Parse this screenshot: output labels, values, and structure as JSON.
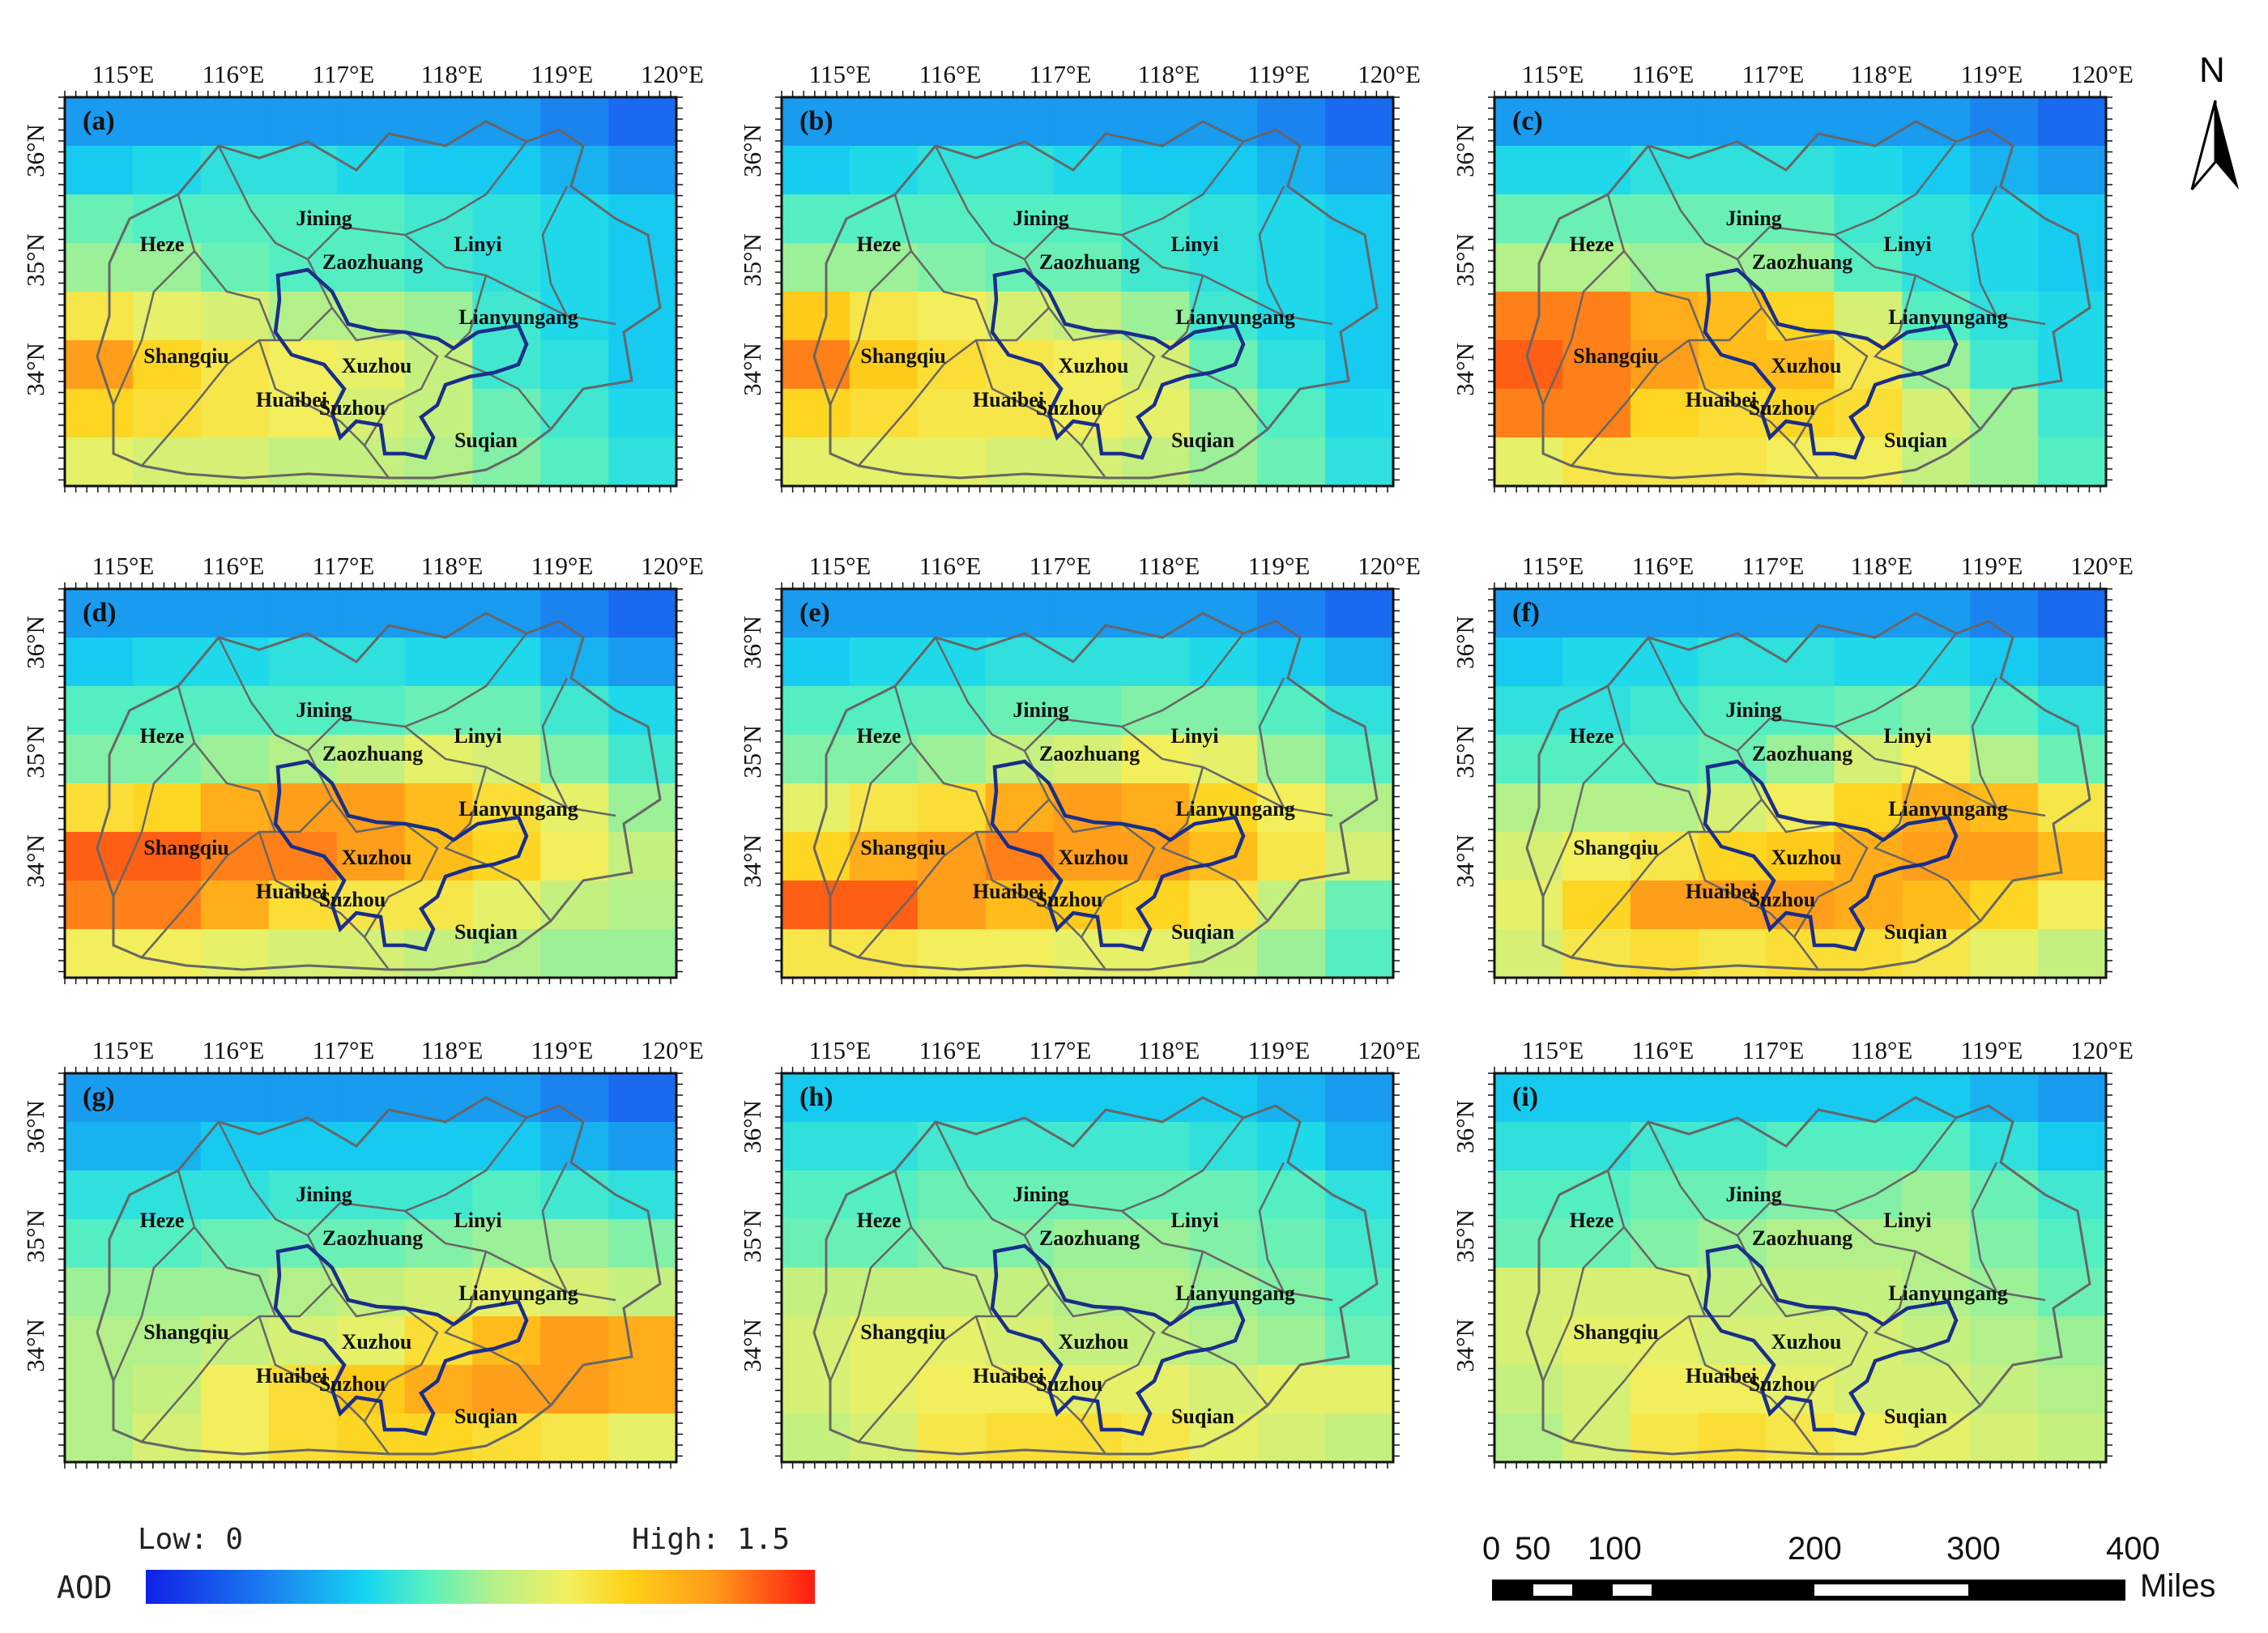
{
  "figure": {
    "lon_ticks": [
      "115°E",
      "116°E",
      "117°E",
      "118°E",
      "119°E",
      "120°E"
    ],
    "lat_ticks": [
      "36°N",
      "35°N",
      "34°N"
    ],
    "cities": [
      {
        "name": "Heze"
      },
      {
        "name": "Jining"
      },
      {
        "name": "Linyi"
      },
      {
        "name": "Zaozhuang"
      },
      {
        "name": "Lianyungang"
      },
      {
        "name": "Shangqiu"
      },
      {
        "name": "Xuzhou"
      },
      {
        "name": "Huaibei"
      },
      {
        "name": "Suzhou"
      },
      {
        "name": "Suqian"
      }
    ],
    "panels": [
      {
        "tag": "(a)"
      },
      {
        "tag": "(b)"
      },
      {
        "tag": "(c)"
      },
      {
        "tag": "(d)"
      },
      {
        "tag": "(e)"
      },
      {
        "tag": "(f)"
      },
      {
        "tag": "(g)"
      },
      {
        "tag": "(h)"
      },
      {
        "tag": "(i)"
      }
    ],
    "aod_grids_note_units": "AOD",
    "aod_grids": [
      [
        [
          0.25,
          0.25,
          0.25,
          0.25,
          0.25,
          0.25,
          0.25,
          0.2,
          0.15
        ],
        [
          0.35,
          0.4,
          0.45,
          0.45,
          0.4,
          0.35,
          0.35,
          0.3,
          0.25
        ],
        [
          0.6,
          0.55,
          0.55,
          0.55,
          0.55,
          0.5,
          0.45,
          0.4,
          0.35
        ],
        [
          0.7,
          0.7,
          0.6,
          0.55,
          0.55,
          0.5,
          0.45,
          0.4,
          0.35
        ],
        [
          1.0,
          0.9,
          0.85,
          0.75,
          0.75,
          0.7,
          0.5,
          0.4,
          0.35
        ],
        [
          1.3,
          1.1,
          1.0,
          0.95,
          0.9,
          0.8,
          0.5,
          0.45,
          0.35
        ],
        [
          1.1,
          1.05,
          1.0,
          0.95,
          0.85,
          0.8,
          0.6,
          0.5,
          0.4
        ],
        [
          0.9,
          0.85,
          0.85,
          0.8,
          0.8,
          0.75,
          0.65,
          0.55,
          0.45
        ]
      ],
      [
        [
          0.25,
          0.25,
          0.25,
          0.25,
          0.25,
          0.25,
          0.25,
          0.2,
          0.15
        ],
        [
          0.35,
          0.4,
          0.45,
          0.45,
          0.4,
          0.35,
          0.35,
          0.3,
          0.25
        ],
        [
          0.55,
          0.55,
          0.55,
          0.55,
          0.55,
          0.5,
          0.45,
          0.4,
          0.35
        ],
        [
          0.7,
          0.7,
          0.65,
          0.6,
          0.6,
          0.5,
          0.45,
          0.4,
          0.35
        ],
        [
          1.15,
          1.0,
          0.95,
          0.85,
          0.8,
          0.7,
          0.5,
          0.4,
          0.35
        ],
        [
          1.35,
          1.15,
          1.05,
          1.0,
          0.95,
          0.85,
          0.6,
          0.45,
          0.35
        ],
        [
          1.1,
          1.05,
          1.0,
          1.0,
          0.95,
          0.9,
          0.7,
          0.55,
          0.4
        ],
        [
          0.9,
          0.9,
          0.9,
          0.85,
          0.85,
          0.8,
          0.7,
          0.6,
          0.45
        ]
      ],
      [
        [
          0.25,
          0.25,
          0.25,
          0.25,
          0.25,
          0.25,
          0.25,
          0.2,
          0.15
        ],
        [
          0.4,
          0.4,
          0.45,
          0.45,
          0.45,
          0.4,
          0.35,
          0.3,
          0.25
        ],
        [
          0.6,
          0.6,
          0.6,
          0.6,
          0.6,
          0.5,
          0.45,
          0.4,
          0.35
        ],
        [
          0.75,
          0.75,
          0.7,
          0.7,
          0.7,
          0.55,
          0.45,
          0.4,
          0.35
        ],
        [
          1.35,
          1.35,
          1.25,
          1.2,
          1.1,
          0.85,
          0.55,
          0.45,
          0.4
        ],
        [
          1.4,
          1.35,
          1.3,
          1.2,
          1.2,
          1.0,
          0.7,
          0.5,
          0.4
        ],
        [
          1.35,
          1.35,
          1.1,
          1.05,
          1.1,
          1.05,
          0.85,
          0.7,
          0.5
        ],
        [
          0.9,
          1.0,
          1.0,
          1.0,
          0.95,
          0.95,
          0.8,
          0.7,
          0.55
        ]
      ],
      [
        [
          0.25,
          0.25,
          0.25,
          0.25,
          0.25,
          0.25,
          0.25,
          0.2,
          0.15
        ],
        [
          0.35,
          0.4,
          0.4,
          0.45,
          0.45,
          0.4,
          0.4,
          0.3,
          0.25
        ],
        [
          0.55,
          0.55,
          0.55,
          0.55,
          0.55,
          0.6,
          0.6,
          0.5,
          0.4
        ],
        [
          0.65,
          0.65,
          0.7,
          0.75,
          0.8,
          0.9,
          0.85,
          0.65,
          0.5
        ],
        [
          1.05,
          1.1,
          1.25,
          1.3,
          1.3,
          1.2,
          1.05,
          0.9,
          0.7
        ],
        [
          1.4,
          1.4,
          1.35,
          1.35,
          1.3,
          1.2,
          1.1,
          0.95,
          0.8
        ],
        [
          1.35,
          1.35,
          1.25,
          1.05,
          1.0,
          1.0,
          0.9,
          0.8,
          0.75
        ],
        [
          0.95,
          0.95,
          0.9,
          0.85,
          0.85,
          0.8,
          0.75,
          0.7,
          0.7
        ]
      ],
      [
        [
          0.25,
          0.25,
          0.25,
          0.25,
          0.25,
          0.25,
          0.25,
          0.2,
          0.15
        ],
        [
          0.35,
          0.4,
          0.4,
          0.45,
          0.45,
          0.45,
          0.4,
          0.35,
          0.3
        ],
        [
          0.55,
          0.55,
          0.55,
          0.6,
          0.6,
          0.65,
          0.65,
          0.55,
          0.45
        ],
        [
          0.65,
          0.65,
          0.7,
          0.8,
          0.85,
          0.95,
          0.9,
          0.7,
          0.55
        ],
        [
          0.9,
          1.0,
          1.05,
          1.25,
          1.3,
          1.25,
          1.1,
          0.95,
          0.75
        ],
        [
          1.1,
          1.25,
          1.3,
          1.35,
          1.3,
          1.3,
          1.2,
          1.0,
          0.85
        ],
        [
          1.4,
          1.4,
          1.3,
          1.2,
          1.15,
          1.1,
          1.0,
          0.8,
          0.6
        ],
        [
          1.0,
          1.0,
          0.95,
          0.95,
          0.9,
          0.9,
          0.8,
          0.7,
          0.55
        ]
      ],
      [
        [
          0.25,
          0.25,
          0.25,
          0.25,
          0.25,
          0.25,
          0.25,
          0.2,
          0.15
        ],
        [
          0.35,
          0.4,
          0.4,
          0.45,
          0.45,
          0.4,
          0.4,
          0.35,
          0.3
        ],
        [
          0.45,
          0.45,
          0.5,
          0.55,
          0.55,
          0.6,
          0.65,
          0.55,
          0.45
        ],
        [
          0.55,
          0.55,
          0.55,
          0.6,
          0.7,
          0.85,
          0.95,
          0.75,
          0.6
        ],
        [
          0.75,
          0.75,
          0.75,
          0.85,
          0.95,
          1.1,
          1.25,
          1.2,
          1.0
        ],
        [
          0.85,
          0.95,
          1.0,
          1.1,
          1.15,
          1.25,
          1.3,
          1.3,
          1.2
        ],
        [
          0.9,
          1.1,
          1.3,
          1.3,
          1.3,
          1.25,
          1.2,
          1.1,
          0.95
        ],
        [
          0.85,
          1.0,
          1.05,
          1.0,
          1.05,
          1.05,
          1.0,
          0.9,
          0.8
        ]
      ],
      [
        [
          0.25,
          0.25,
          0.25,
          0.25,
          0.25,
          0.25,
          0.25,
          0.2,
          0.15
        ],
        [
          0.3,
          0.3,
          0.35,
          0.35,
          0.35,
          0.35,
          0.35,
          0.3,
          0.25
        ],
        [
          0.45,
          0.45,
          0.45,
          0.5,
          0.5,
          0.5,
          0.55,
          0.5,
          0.45
        ],
        [
          0.55,
          0.55,
          0.6,
          0.6,
          0.6,
          0.65,
          0.7,
          0.7,
          0.65
        ],
        [
          0.7,
          0.7,
          0.7,
          0.75,
          0.8,
          0.85,
          0.9,
          0.85,
          0.8
        ],
        [
          0.75,
          0.75,
          0.8,
          0.85,
          0.9,
          1.05,
          1.2,
          1.3,
          1.25
        ],
        [
          0.75,
          0.8,
          0.95,
          1.05,
          1.15,
          1.25,
          1.3,
          1.3,
          1.25
        ],
        [
          0.75,
          0.85,
          0.95,
          1.05,
          1.1,
          1.1,
          1.05,
          1.0,
          0.9
        ]
      ],
      [
        [
          0.35,
          0.35,
          0.35,
          0.35,
          0.35,
          0.35,
          0.35,
          0.3,
          0.25
        ],
        [
          0.45,
          0.45,
          0.5,
          0.5,
          0.5,
          0.5,
          0.45,
          0.4,
          0.3
        ],
        [
          0.55,
          0.55,
          0.6,
          0.6,
          0.6,
          0.6,
          0.6,
          0.55,
          0.45
        ],
        [
          0.6,
          0.6,
          0.65,
          0.65,
          0.7,
          0.7,
          0.65,
          0.6,
          0.5
        ],
        [
          0.8,
          0.8,
          0.8,
          0.8,
          0.75,
          0.75,
          0.7,
          0.65,
          0.55
        ],
        [
          0.85,
          0.9,
          0.9,
          0.85,
          0.8,
          0.8,
          0.75,
          0.7,
          0.6
        ],
        [
          0.85,
          0.9,
          0.95,
          0.95,
          0.9,
          0.9,
          0.85,
          0.9,
          0.9
        ],
        [
          0.8,
          0.85,
          1.0,
          1.05,
          1.05,
          1.0,
          0.9,
          0.85,
          0.8
        ]
      ],
      [
        [
          0.35,
          0.35,
          0.35,
          0.35,
          0.35,
          0.35,
          0.35,
          0.3,
          0.25
        ],
        [
          0.45,
          0.45,
          0.5,
          0.5,
          0.55,
          0.55,
          0.55,
          0.45,
          0.35
        ],
        [
          0.55,
          0.55,
          0.6,
          0.6,
          0.65,
          0.65,
          0.7,
          0.6,
          0.5
        ],
        [
          0.6,
          0.6,
          0.65,
          0.7,
          0.75,
          0.75,
          0.75,
          0.65,
          0.55
        ],
        [
          0.85,
          0.85,
          0.85,
          0.8,
          0.8,
          0.8,
          0.75,
          0.7,
          0.6
        ],
        [
          0.85,
          0.9,
          0.9,
          0.85,
          0.85,
          0.85,
          0.8,
          0.75,
          0.7
        ],
        [
          0.8,
          0.85,
          0.95,
          0.95,
          0.9,
          0.85,
          0.85,
          0.8,
          0.75
        ],
        [
          0.75,
          0.85,
          1.0,
          1.05,
          1.0,
          0.95,
          0.9,
          0.85,
          0.8
        ]
      ]
    ]
  },
  "legend": {
    "title": "AOD",
    "low_label": "Low: 0",
    "high_label": "High: 1.5",
    "colors": [
      "#1020e6",
      "#1b7df0",
      "#16d6f0",
      "#58f0c0",
      "#b4f08a",
      "#f2f060",
      "#ffd21a",
      "#ff9a1a",
      "#ff1a10"
    ]
  },
  "scalebar": {
    "labels": [
      "0",
      "50",
      "100",
      "200",
      "300",
      "400"
    ],
    "unit": "Miles"
  },
  "north_arrow": {
    "label": "N"
  }
}
